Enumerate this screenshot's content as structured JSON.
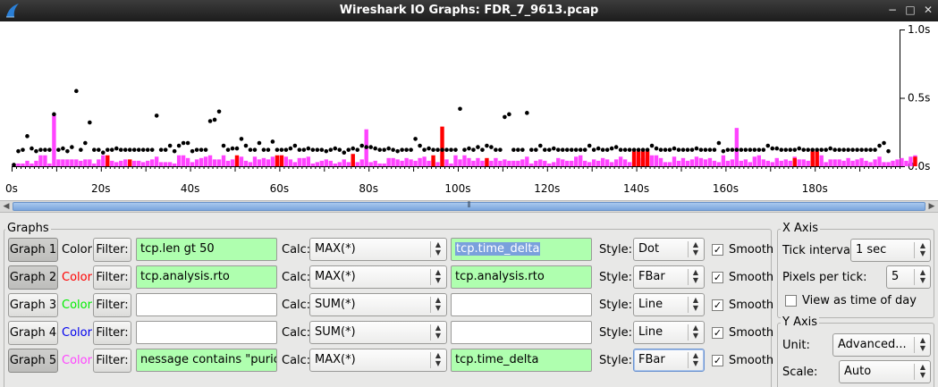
{
  "window": {
    "title": "Wireshark IO Graphs: FDR_7_9613.pcap",
    "buttons": [
      "−",
      "□",
      "✕"
    ]
  },
  "chart_data": {
    "type": "bar",
    "x_tick_labels": [
      "0s",
      "20s",
      "40s",
      "60s",
      "80s",
      "100s",
      "120s",
      "140s",
      "160s",
      "180s"
    ],
    "x_ticks": [
      0,
      20,
      40,
      60,
      80,
      100,
      120,
      140,
      160,
      180
    ],
    "xlim": [
      0,
      199
    ],
    "y_tick_labels": [
      "1.0s",
      "0.5s",
      "0.0s"
    ],
    "y_ticks": [
      1.0,
      0.5,
      0.0
    ],
    "ylim": [
      0,
      1.0
    ],
    "colors": {
      "graph1": "#000000",
      "graph2": "#ff0000",
      "graph5": "#ff44ff"
    },
    "series": [
      {
        "style": "dot",
        "color": "#000000",
        "values": [
          0.01,
          0.11,
          0.12,
          0.22,
          0.13,
          0.11,
          0.12,
          0.12,
          0.12,
          0.38,
          0.12,
          0.13,
          0.11,
          0.14,
          0.55,
          0.12,
          0.17,
          0.32,
          0.12,
          0.12,
          0.1,
          0.12,
          0.12,
          0.13,
          0.12,
          0.12,
          0.12,
          0.12,
          0.12,
          0.12,
          0.12,
          0.12,
          0.37,
          0.12,
          0.12,
          0.15,
          0.11,
          0.15,
          0.17,
          0.17,
          0.11,
          0.12,
          0.12,
          0.12,
          0.33,
          0.34,
          0.4,
          0.15,
          0.12,
          0.13,
          0.13,
          0.2,
          0.15,
          0.12,
          0.12,
          0.17,
          0.12,
          0.12,
          0.18,
          0.12,
          0.12,
          0.12,
          0.13,
          0.15,
          0.12,
          0.12,
          0.13,
          0.12,
          0.12,
          0.12,
          0.11,
          0.12,
          0.13,
          0.12,
          0.1,
          0.12,
          0.13,
          0.12,
          0.15,
          0.14,
          0.14,
          0.13,
          0.12,
          0.12,
          0.13,
          0.12,
          0.11,
          0.12,
          0.12,
          0.12,
          0.2,
          0.15,
          0.12,
          0.13,
          0.12,
          0.12,
          0.12,
          0.12,
          0.12,
          0.12,
          0.42,
          0.12,
          0.13,
          0.12,
          0.14,
          0.12,
          0.15,
          0.14,
          0.12,
          0.12,
          0.36,
          0.38,
          0.12,
          0.12,
          0.12,
          0.39,
          0.12,
          0.12,
          0.15,
          0.12,
          0.12,
          0.13,
          0.12,
          0.12,
          0.12,
          0.12,
          0.12,
          0.12,
          0.12,
          0.15,
          0.12,
          0.13,
          0.12,
          0.12,
          0.13,
          0.14,
          0.12,
          0.12,
          0.12,
          0.12,
          0.12,
          0.12,
          0.12,
          0.15,
          0.13,
          0.12,
          0.12,
          0.12,
          0.13,
          0.12,
          0.12,
          0.12,
          0.12,
          0.13,
          0.12,
          0.12,
          0.12,
          0.12,
          0.17,
          0.11,
          0.12,
          0.12,
          0.12,
          0.12,
          0.12,
          0.12,
          0.12,
          0.12,
          0.12,
          0.15,
          0.13,
          0.13,
          0.12,
          0.12,
          0.12,
          0.12,
          0.13,
          0.12,
          0.12,
          0.12,
          0.12,
          0.12,
          0.12,
          0.13,
          0.12,
          0.12,
          0.12,
          0.12,
          0.12,
          0.12,
          0.12,
          0.12,
          0.12,
          0.12,
          0.15,
          0.17,
          0.11
        ]
      },
      {
        "style": "fbar",
        "color": "#ff0000",
        "values": [
          0,
          0,
          0,
          0,
          0,
          0,
          0,
          0,
          0,
          0,
          0,
          0,
          0,
          0,
          0,
          0,
          0,
          0,
          0,
          0,
          0,
          0.08,
          0,
          0,
          0,
          0,
          0.05,
          0,
          0,
          0,
          0,
          0,
          0,
          0,
          0,
          0,
          0,
          0,
          0,
          0,
          0,
          0,
          0,
          0,
          0,
          0,
          0,
          0,
          0,
          0,
          0.08,
          0,
          0,
          0,
          0,
          0,
          0,
          0,
          0,
          0.08,
          0.08,
          0,
          0,
          0,
          0,
          0,
          0,
          0,
          0,
          0,
          0,
          0,
          0,
          0,
          0,
          0,
          0.09,
          0,
          0,
          0,
          0,
          0,
          0,
          0,
          0,
          0,
          0,
          0,
          0,
          0,
          0,
          0,
          0,
          0,
          0.08,
          0,
          0.29,
          0,
          0,
          0,
          0,
          0,
          0,
          0,
          0,
          0,
          0.06,
          0,
          0,
          0,
          0,
          0,
          0,
          0,
          0,
          0,
          0,
          0,
          0,
          0,
          0,
          0,
          0,
          0,
          0,
          0,
          0,
          0,
          0,
          0,
          0,
          0,
          0,
          0,
          0,
          0,
          0,
          0,
          0,
          0.11,
          0.11,
          0.11,
          0.11,
          0,
          0,
          0,
          0,
          0,
          0,
          0,
          0,
          0,
          0,
          0,
          0,
          0,
          0,
          0,
          0,
          0,
          0,
          0,
          0,
          0,
          0,
          0,
          0,
          0,
          0,
          0,
          0,
          0,
          0,
          0,
          0,
          0.06,
          0,
          0,
          0,
          0.11,
          0.11,
          0,
          0,
          0,
          0,
          0,
          0,
          0,
          0,
          0,
          0,
          0,
          0,
          0,
          0,
          0,
          0,
          0,
          0,
          0,
          0,
          0,
          0.07,
          0
        ]
      },
      {
        "style": "fbar",
        "color": "#ff44ff",
        "values": [
          0.02,
          0.02,
          0.02,
          0.04,
          0.02,
          0.04,
          0.08,
          0.08,
          0.02,
          0.37,
          0.05,
          0.05,
          0.05,
          0.05,
          0.05,
          0.04,
          0.05,
          0.05,
          0.02,
          0.05,
          0.08,
          0.04,
          0.04,
          0.03,
          0.04,
          0.05,
          0.02,
          0.04,
          0.04,
          0.03,
          0.04,
          0.05,
          0.07,
          0.03,
          0.03,
          0.03,
          0.02,
          0.08,
          0.08,
          0.06,
          0.03,
          0.05,
          0.06,
          0.07,
          0.08,
          0.05,
          0.05,
          0.08,
          0.04,
          0.05,
          0.06,
          0.07,
          0.04,
          0.03,
          0.07,
          0.05,
          0.06,
          0.05,
          0.07,
          0.05,
          0.08,
          0.07,
          0.05,
          0.03,
          0.06,
          0.06,
          0.07,
          0.02,
          0.03,
          0.04,
          0.05,
          0.04,
          0.02,
          0.03,
          0.05,
          0.03,
          0.04,
          0.03,
          0.05,
          0.27,
          0.03,
          0.04,
          0.02,
          0.02,
          0.06,
          0.06,
          0.05,
          0.04,
          0.06,
          0.05,
          0.04,
          0.06,
          0.07,
          0.04,
          0.05,
          0.03,
          0.08,
          0.05,
          0.02,
          0.08,
          0.05,
          0.08,
          0.06,
          0.04,
          0.06,
          0.04,
          0.05,
          0.04,
          0.06,
          0.04,
          0.05,
          0.04,
          0.04,
          0.04,
          0.05,
          0.07,
          0.02,
          0.04,
          0.05,
          0.04,
          0.02,
          0.03,
          0.06,
          0.05,
          0.04,
          0.04,
          0.07,
          0.08,
          0.04,
          0.03,
          0.05,
          0.04,
          0.06,
          0.05,
          0.03,
          0.05,
          0.07,
          0.05,
          0.03,
          0.08,
          0.06,
          0.06,
          0.08,
          0.08,
          0.08,
          0.06,
          0.03,
          0.03,
          0.07,
          0.04,
          0.06,
          0.04,
          0.05,
          0.07,
          0.06,
          0.05,
          0.06,
          0.04,
          0.03,
          0.08,
          0.04,
          0.05,
          0.28,
          0.04,
          0.05,
          0.03,
          0.07,
          0.08,
          0.05,
          0.04,
          0.03,
          0.06,
          0.04,
          0.05,
          0.04,
          0.07,
          0.05,
          0.05,
          0.04,
          0.07,
          0.04,
          0.08,
          0.03,
          0.05,
          0.05,
          0.05,
          0.04,
          0.06,
          0.04,
          0.05,
          0.06,
          0.04,
          0.03,
          0.05,
          0.07,
          0.03,
          0.03,
          0.04,
          0.05,
          0.06,
          0.04,
          0.07,
          0.08
        ]
      }
    ]
  },
  "graphs_frame": {
    "label": "Graphs"
  },
  "graphs": [
    {
      "button": "Graph 1",
      "color_label": "Color",
      "color": "#000000",
      "filter_btn": "Filter:",
      "filter": "tcp.len gt 50",
      "calc_label": "Calc:",
      "calc": "MAX(*)",
      "calc_field": "tcp.time_delta",
      "style_label": "Style:",
      "style": "Dot",
      "smooth_label": "Smooth",
      "smooth": true,
      "active": true,
      "filter_green": true,
      "field_green": true,
      "field_selected": true
    },
    {
      "button": "Graph 2",
      "color_label": "Color",
      "color": "#ff0000",
      "filter_btn": "Filter:",
      "filter": "tcp.analysis.rto",
      "calc_label": "Calc:",
      "calc": "MAX(*)",
      "calc_field": "tcp.analysis.rto",
      "style_label": "Style:",
      "style": "FBar",
      "smooth_label": "Smooth",
      "smooth": true,
      "active": true,
      "filter_green": true,
      "field_green": true,
      "field_selected": false
    },
    {
      "button": "Graph 3",
      "color_label": "Color",
      "color": "#00ee00",
      "filter_btn": "Filter:",
      "filter": "",
      "calc_label": "Calc:",
      "calc": "SUM(*)",
      "calc_field": "",
      "style_label": "Style:",
      "style": "Line",
      "smooth_label": "Smooth",
      "smooth": true,
      "active": false,
      "filter_green": false,
      "field_green": false,
      "field_selected": false
    },
    {
      "button": "Graph 4",
      "color_label": "Color",
      "color": "#0000ee",
      "filter_btn": "Filter:",
      "filter": "",
      "calc_label": "Calc:",
      "calc": "SUM(*)",
      "calc_field": "",
      "style_label": "Style:",
      "style": "Line",
      "smooth_label": "Smooth",
      "smooth": true,
      "active": false,
      "filter_green": false,
      "field_green": false,
      "field_selected": false
    },
    {
      "button": "Graph 5",
      "color_label": "Color",
      "color": "#ff44ff",
      "filter_btn": "Filter:",
      "filter": "nessage contains  \"puriou\"",
      "calc_label": "Calc:",
      "calc": "MAX(*)",
      "calc_field": "tcp.time_delta",
      "style_label": "Style:",
      "style": "FBar",
      "smooth_label": "Smooth",
      "smooth": true,
      "active": true,
      "filter_green": true,
      "field_green": true,
      "field_selected": false
    }
  ],
  "x_axis": {
    "label": "X Axis",
    "tick_interval_label": "Tick interval:",
    "tick_interval": "1 sec",
    "pixels_per_tick_label": "Pixels per tick:",
    "pixels_per_tick": "5",
    "time_of_day_label": "View as time of day",
    "time_of_day": false
  },
  "y_axis": {
    "label": "Y Axis",
    "unit_label": "Unit:",
    "unit": "Advanced...",
    "scale_label": "Scale:",
    "scale": "Auto"
  }
}
